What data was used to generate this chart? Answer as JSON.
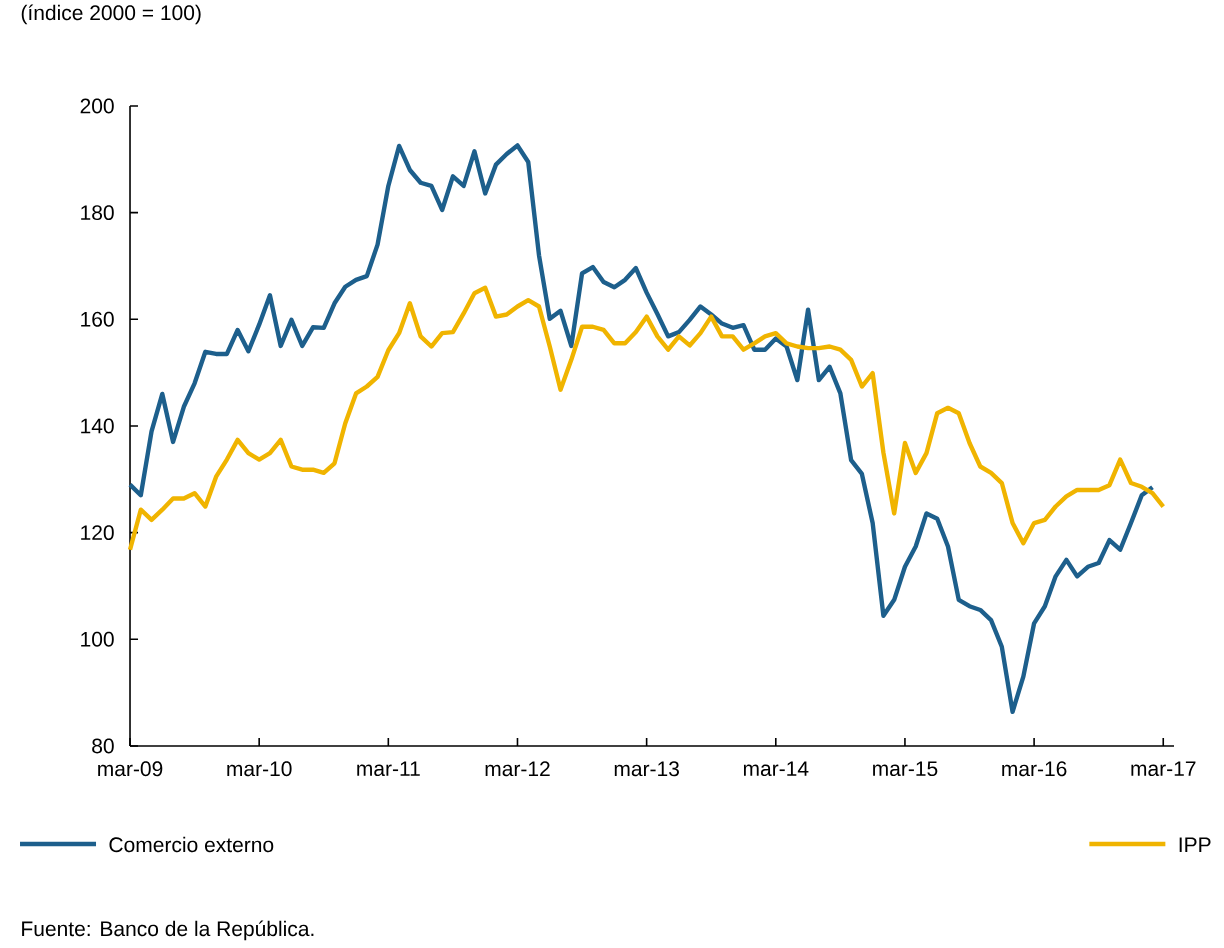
{
  "chart_data": {
    "type": "line",
    "ylabel": "(índice 2000 = 100)",
    "annotations": [
      "Fuente: Banco de la República."
    ],
    "xlim": [
      "2009-03",
      "2017-04"
    ],
    "xticks": [
      {
        "value": "2009-03",
        "label": "mar-09"
      },
      {
        "value": "2010-03",
        "label": "mar-10"
      },
      {
        "value": "2011-03",
        "label": "mar-11"
      },
      {
        "value": "2012-03",
        "label": "mar-12"
      },
      {
        "value": "2013-03",
        "label": "mar-13"
      },
      {
        "value": "2014-03",
        "label": "mar-14"
      },
      {
        "value": "2015-03",
        "label": "mar-15"
      },
      {
        "value": "2016-03",
        "label": "mar-16"
      },
      {
        "value": "2017-03",
        "label": "mar-17"
      }
    ],
    "ylim": [
      80,
      200
    ],
    "yticks": [
      80,
      100,
      120,
      140,
      160,
      180,
      200
    ],
    "grid": false,
    "legend": "bottom",
    "marker": "none",
    "line_style": "solid",
    "x": [
      "2009-03",
      "2009-04",
      "2009-05",
      "2009-06",
      "2009-07",
      "2009-08",
      "2009-09",
      "2009-10",
      "2009-11",
      "2009-12",
      "2010-01",
      "2010-02",
      "2010-03",
      "2010-04",
      "2010-05",
      "2010-06",
      "2010-07",
      "2010-08",
      "2010-09",
      "2010-10",
      "2010-11",
      "2010-12",
      "2011-01",
      "2011-02",
      "2011-03",
      "2011-04",
      "2011-05",
      "2011-06",
      "2011-07",
      "2011-08",
      "2011-09",
      "2011-10",
      "2011-11",
      "2011-12",
      "2012-01",
      "2012-02",
      "2012-03",
      "2012-04",
      "2012-05",
      "2012-06",
      "2012-07",
      "2012-08",
      "2012-09",
      "2012-10",
      "2012-11",
      "2012-12",
      "2013-01",
      "2013-02",
      "2013-03",
      "2013-04",
      "2013-05",
      "2013-06",
      "2013-07",
      "2013-08",
      "2013-09",
      "2013-10",
      "2013-11",
      "2013-12",
      "2014-01",
      "2014-02",
      "2014-03",
      "2014-04",
      "2014-05",
      "2014-06",
      "2014-07",
      "2014-08",
      "2014-09",
      "2014-10",
      "2014-11",
      "2014-12",
      "2015-01",
      "2015-02",
      "2015-03",
      "2015-04",
      "2015-05",
      "2015-06",
      "2015-07",
      "2015-08",
      "2015-09",
      "2015-10",
      "2015-11",
      "2015-12",
      "2016-01",
      "2016-02",
      "2016-03",
      "2016-04",
      "2016-05",
      "2016-06",
      "2016-07",
      "2016-08",
      "2016-09",
      "2016-10",
      "2016-11",
      "2016-12",
      "2017-01",
      "2017-02",
      "2017-03"
    ],
    "series": [
      {
        "name": "Comercio externo",
        "color": "#1d5f8c",
        "values": [
          129,
          127,
          139,
          146,
          137,
          143.6,
          148,
          153.9,
          153.5,
          153.5,
          158,
          154,
          159,
          164.5,
          155,
          159.9,
          155,
          158.5,
          158.4,
          163,
          166.1,
          167.4,
          168.1,
          174,
          185,
          192.5,
          188,
          185.6,
          185,
          180.5,
          186.8,
          185,
          191.5,
          183.6,
          189,
          191,
          192.6,
          189.5,
          172,
          160.1,
          161.6,
          155,
          168.6,
          169.8,
          167,
          166,
          167.4,
          169.6,
          165,
          161,
          156.8,
          157.6,
          159.9,
          162.4,
          160.9,
          159.2,
          158.4,
          158.9,
          154.3,
          154.3,
          156.4,
          154.9,
          148.6,
          161.8,
          148.6,
          151.1,
          146.1,
          133.6,
          131,
          121.8,
          104.4,
          107.4,
          113.6,
          117.4,
          123.6,
          122.6,
          117.4,
          107.4,
          106.2,
          105.5,
          103.6,
          98.6,
          86.4,
          93,
          103,
          106.2,
          111.8,
          114.9,
          111.8,
          113.6,
          114.3,
          118.6,
          116.8,
          121.8,
          127,
          128.5,
          null
        ]
      },
      {
        "name": "IPP",
        "color": "#f0b400",
        "values": [
          116.8,
          124.3,
          122.4,
          124.3,
          126.4,
          126.4,
          127.4,
          124.9,
          130.5,
          133.7,
          137.4,
          134.9,
          133.7,
          134.9,
          137.4,
          132.4,
          131.8,
          131.8,
          131.2,
          133,
          140.5,
          146.1,
          147.4,
          149.2,
          154.2,
          157.4,
          163,
          156.8,
          154.9,
          157.4,
          157.6,
          161.1,
          164.9,
          165.9,
          160.5,
          160.9,
          162.4,
          163.6,
          162.4,
          154.9,
          146.8,
          152.4,
          158.6,
          158.6,
          158,
          155.5,
          155.5,
          157.6,
          160.5,
          156.8,
          154.3,
          156.8,
          155.1,
          157.4,
          160.5,
          156.8,
          156.8,
          154.3,
          155.5,
          156.8,
          157.4,
          155.5,
          154.9,
          154.6,
          154.6,
          154.9,
          154.3,
          152.4,
          147.4,
          149.9,
          135,
          123.6,
          136.8,
          131.2,
          134.9,
          142.4,
          143.4,
          142.4,
          136.8,
          132.4,
          131.2,
          129.3,
          121.8,
          118,
          121.8,
          122.4,
          124.9,
          126.8,
          128,
          128,
          128,
          128.9,
          133.7,
          129.3,
          128.6,
          127.4,
          124.9
        ]
      }
    ]
  }
}
